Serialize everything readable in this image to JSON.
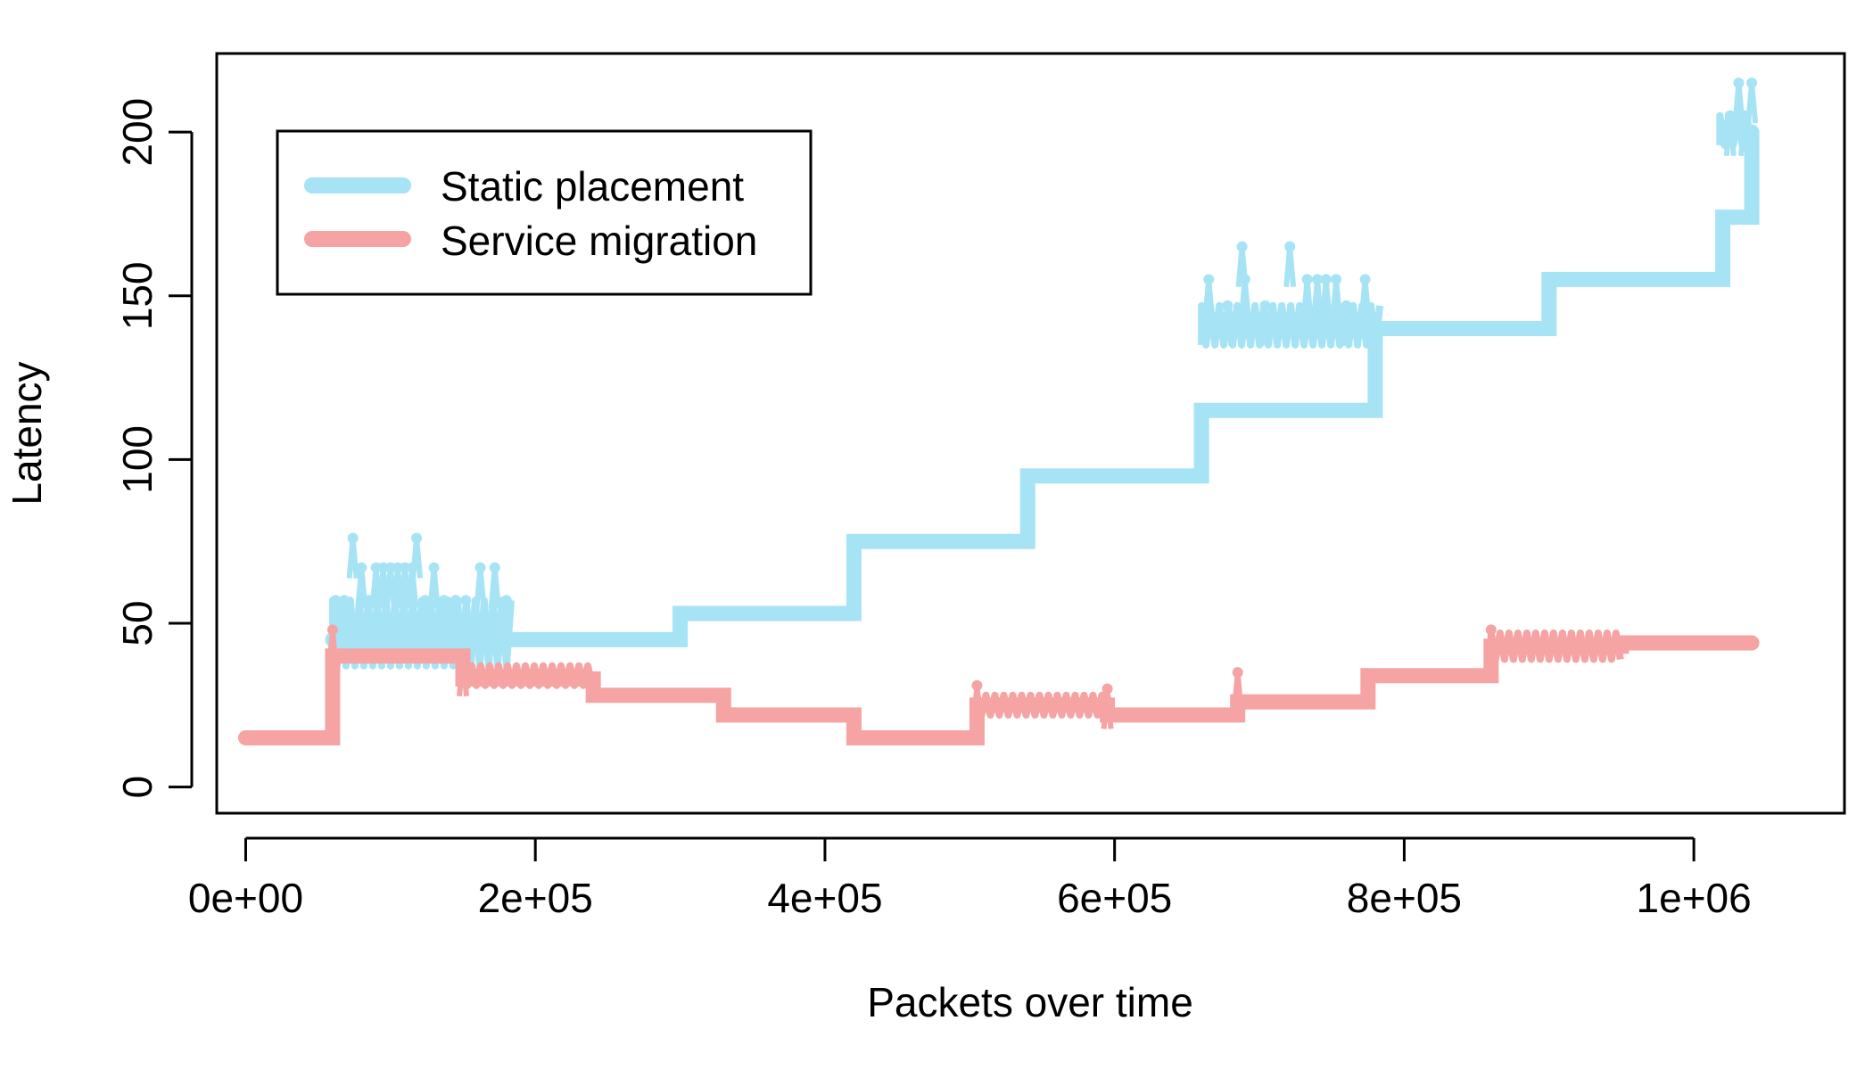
{
  "chart_data": {
    "type": "line",
    "title": "",
    "xlabel": "Packets over time",
    "ylabel": "Latency",
    "xlim": [
      -20000,
      1104000
    ],
    "ylim": [
      -8,
      224
    ],
    "x_ticks": [
      0,
      200000,
      400000,
      600000,
      800000,
      1000000
    ],
    "x_tick_labels": [
      "0e+00",
      "2e+05",
      "4e+05",
      "6e+05",
      "8e+05",
      "1e+06"
    ],
    "y_ticks": [
      0,
      50,
      100,
      150,
      200
    ],
    "y_tick_labels": [
      "0",
      "50",
      "100",
      "150",
      "200"
    ],
    "grid": false,
    "legend": {
      "position": "top-left"
    },
    "series": [
      {
        "name": "Static placement",
        "color": "#a6e3f5",
        "step_x": [
          60000,
          300000,
          420000,
          540000,
          660000,
          780000,
          900000,
          1020000,
          1040000
        ],
        "step_y": [
          45,
          53,
          75,
          95,
          115,
          140,
          155,
          174,
          200
        ],
        "noise_bands": [
          {
            "x": [
              60000,
              185000
            ],
            "y": [
              37,
              57
            ]
          },
          {
            "x": [
              660000,
              785000
            ],
            "y": [
              135,
              147
            ]
          },
          {
            "x": [
              1018000,
              1040000
            ],
            "y": [
              196,
              205
            ]
          }
        ],
        "spikes": [
          {
            "x": 62000,
            "y": 57
          },
          {
            "x": 68000,
            "y": 57
          },
          {
            "x": 74000,
            "y": 76
          },
          {
            "x": 80000,
            "y": 67
          },
          {
            "x": 85000,
            "y": 57
          },
          {
            "x": 90000,
            "y": 67
          },
          {
            "x": 95000,
            "y": 67
          },
          {
            "x": 100000,
            "y": 67
          },
          {
            "x": 105000,
            "y": 67
          },
          {
            "x": 110000,
            "y": 67
          },
          {
            "x": 115000,
            "y": 67
          },
          {
            "x": 118000,
            "y": 76
          },
          {
            "x": 124000,
            "y": 57
          },
          {
            "x": 130000,
            "y": 67
          },
          {
            "x": 137000,
            "y": 57
          },
          {
            "x": 145000,
            "y": 57
          },
          {
            "x": 152000,
            "y": 57
          },
          {
            "x": 162000,
            "y": 67
          },
          {
            "x": 172000,
            "y": 67
          },
          {
            "x": 180000,
            "y": 57
          },
          {
            "x": 665000,
            "y": 155
          },
          {
            "x": 678000,
            "y": 147
          },
          {
            "x": 688000,
            "y": 165
          },
          {
            "x": 690000,
            "y": 155
          },
          {
            "x": 704000,
            "y": 147
          },
          {
            "x": 721000,
            "y": 165
          },
          {
            "x": 733000,
            "y": 155
          },
          {
            "x": 740000,
            "y": 155
          },
          {
            "x": 746000,
            "y": 155
          },
          {
            "x": 753000,
            "y": 155
          },
          {
            "x": 760000,
            "y": 147
          },
          {
            "x": 773000,
            "y": 155
          },
          {
            "x": 1025000,
            "y": 205
          },
          {
            "x": 1031000,
            "y": 215
          },
          {
            "x": 1035000,
            "y": 205
          },
          {
            "x": 1040000,
            "y": 215
          }
        ]
      },
      {
        "name": "Service migration",
        "color": "#f5a3a3",
        "step_x": [
          0,
          60000,
          150000,
          240000,
          330000,
          420000,
          505000,
          595000,
          685000,
          775000,
          860000,
          950000,
          1040000
        ],
        "step_y": [
          15,
          40,
          33,
          28,
          22,
          15,
          25,
          22,
          26,
          34,
          43,
          44,
          44
        ],
        "noise_bands": [
          {
            "x": [
              150000,
              240000
            ],
            "y": [
              31,
              37
            ]
          },
          {
            "x": [
              505000,
              595000
            ],
            "y": [
              22,
              28
            ]
          },
          {
            "x": [
              860000,
              950000
            ],
            "y": [
              39,
              47
            ]
          }
        ],
        "spikes": [
          {
            "x": 60000,
            "y": 48
          },
          {
            "x": 150000,
            "y": 40
          },
          {
            "x": 505000,
            "y": 31
          },
          {
            "x": 595000,
            "y": 30
          },
          {
            "x": 685000,
            "y": 35
          },
          {
            "x": 860000,
            "y": 48
          }
        ]
      }
    ]
  }
}
